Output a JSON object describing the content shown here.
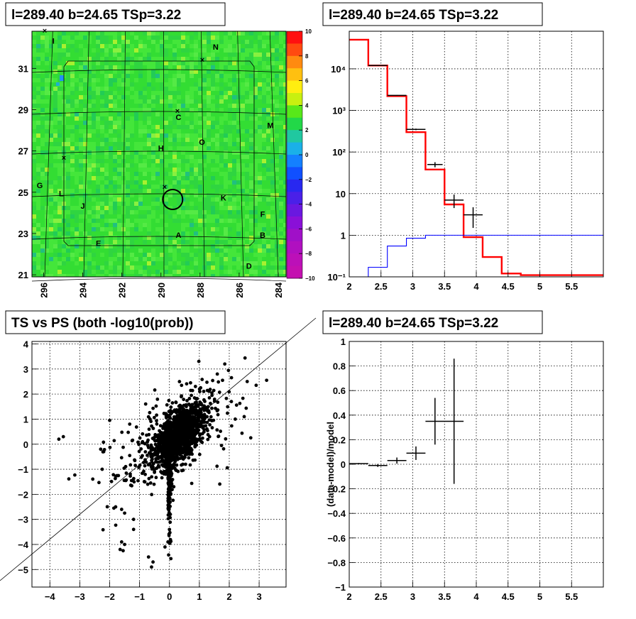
{
  "chart_data": [
    {
      "panel": "sky-map",
      "type": "heatmap",
      "title": "l=289.40 b=24.65 TSp=3.22",
      "xlim": [
        296.6,
        283.6
      ],
      "ylim": [
        20.9,
        32.8
      ],
      "x_ticks": [
        "296",
        "294",
        "292",
        "290",
        "288",
        "286",
        "284"
      ],
      "y_ticks": [
        "21",
        "23",
        "25",
        "27",
        "29",
        "31"
      ],
      "colorbar": {
        "range": [
          -10,
          10
        ],
        "ticks": [
          "10",
          "8",
          "6",
          "4",
          "2",
          "0",
          "−2",
          "−4",
          "−6",
          "−8",
          "−10"
        ]
      },
      "labels": [
        {
          "text": "I",
          "x": 295.5,
          "y": 32.2
        },
        {
          "text": "N",
          "x": 287.2,
          "y": 31.9
        },
        {
          "text": "C",
          "x": 289.1,
          "y": 28.5
        },
        {
          "text": "M",
          "x": 284.4,
          "y": 28.1
        },
        {
          "text": "O",
          "x": 287.9,
          "y": 27.3
        },
        {
          "text": "H",
          "x": 290.0,
          "y": 27.0
        },
        {
          "text": "G",
          "x": 296.2,
          "y": 25.2
        },
        {
          "text": "L",
          "x": 295.1,
          "y": 24.8
        },
        {
          "text": "K",
          "x": 286.8,
          "y": 24.6
        },
        {
          "text": "J",
          "x": 294.0,
          "y": 24.2
        },
        {
          "text": "F",
          "x": 284.8,
          "y": 23.8
        },
        {
          "text": "A",
          "x": 289.1,
          "y": 22.8
        },
        {
          "text": "B",
          "x": 284.8,
          "y": 22.8
        },
        {
          "text": "E",
          "x": 293.2,
          "y": 22.4
        },
        {
          "text": "D",
          "x": 285.5,
          "y": 21.3
        }
      ],
      "source_circle": {
        "x": 289.4,
        "y": 24.65
      }
    },
    {
      "panel": "spectrum",
      "type": "line",
      "title": "l=289.40 b=24.65 TSp=3.22",
      "xlim": [
        2,
        6
      ],
      "ylim": [
        0.1,
        80000
      ],
      "y_scale": "log",
      "x_ticks": [
        "2",
        "2.5",
        "3",
        "3.5",
        "4",
        "4.5",
        "5",
        "5.5"
      ],
      "y_ticks": [
        "10⁻¹",
        "1",
        "10",
        "10²",
        "10³",
        "10⁴"
      ],
      "bin_edges": [
        2,
        2.3,
        2.6,
        2.9,
        3.2,
        3.5,
        3.8,
        4.1,
        4.4,
        4.7,
        5.0,
        5.3,
        5.6,
        6.0
      ],
      "series": [
        {
          "color": "#ff0000",
          "values": [
            50000,
            12000,
            2200,
            300,
            38,
            5.5,
            0.9,
            0.3,
            0.12,
            0.11,
            0.11,
            0.11,
            0.11
          ]
        },
        {
          "color": "#0000ff",
          "values": [
            0.09,
            0.17,
            0.55,
            0.85,
            1.0,
            1.0,
            1.0,
            1.0,
            1.0,
            1.0,
            1.0,
            1.0,
            1.0
          ]
        }
      ],
      "data_points": [
        {
          "x": 2.45,
          "y": 12000,
          "xerr": 0.15,
          "yerr": 100
        },
        {
          "x": 2.75,
          "y": 2300,
          "xerr": 0.15,
          "yerr": 40
        },
        {
          "x": 3.05,
          "y": 350,
          "xerr": 0.15,
          "yerr": 15
        },
        {
          "x": 3.35,
          "y": 50,
          "xerr": 0.12,
          "yerr": 7
        },
        {
          "x": 3.65,
          "y": 7,
          "xerr": 0.15,
          "yerr": 2.5
        },
        {
          "x": 3.95,
          "y": 3.1,
          "xerr": 0.15,
          "yerr": 1.6
        }
      ]
    },
    {
      "panel": "ts-vs-ps",
      "type": "scatter",
      "title": "TS vs PS (both -log10(prob))",
      "xlim": [
        -4.6,
        3.9
      ],
      "ylim": [
        -5.7,
        4.1
      ],
      "x_ticks": [
        "−4",
        "−3",
        "−2",
        "−1",
        "0",
        "1",
        "2",
        "3"
      ],
      "y_ticks": [
        "−5",
        "−4",
        "−3",
        "−2",
        "−1",
        "0",
        "1",
        "2",
        "3",
        "4"
      ],
      "reference_line": {
        "slope": 1,
        "intercept": 0
      },
      "points_note": "dense cloud centred near (0.3, 0.4), spread to (-3.7, 0.2), (3.2, 2.6), (-0.6, -4.9)"
    },
    {
      "panel": "residuals",
      "type": "scatter",
      "title": "l=289.40 b=24.65 TSp=3.22",
      "ylabel": "(data-model)/model",
      "xlim": [
        2,
        6
      ],
      "ylim": [
        -1,
        1
      ],
      "x_ticks": [
        "2",
        "2.5",
        "3",
        "3.5",
        "4",
        "4.5",
        "5",
        "5.5"
      ],
      "y_ticks": [
        "1",
        "0.8",
        "0.6",
        "0.4",
        "0.2",
        "0",
        "−0.2",
        "−0.4",
        "−0.6",
        "−0.8",
        "−1"
      ],
      "data_points": [
        {
          "x": 2.15,
          "y": 0.005,
          "xerr": 0.15,
          "yerr": 0.005
        },
        {
          "x": 2.45,
          "y": -0.01,
          "xerr": 0.15,
          "yerr": 0.012
        },
        {
          "x": 2.75,
          "y": 0.03,
          "xerr": 0.15,
          "yerr": 0.025
        },
        {
          "x": 3.05,
          "y": 0.09,
          "xerr": 0.15,
          "yerr": 0.055
        },
        {
          "x": 3.35,
          "y": 0.35,
          "xerr": 0.15,
          "yerr": 0.19
        },
        {
          "x": 3.65,
          "y": 0.35,
          "xerr": 0.15,
          "yerr": 0.51
        }
      ]
    }
  ]
}
